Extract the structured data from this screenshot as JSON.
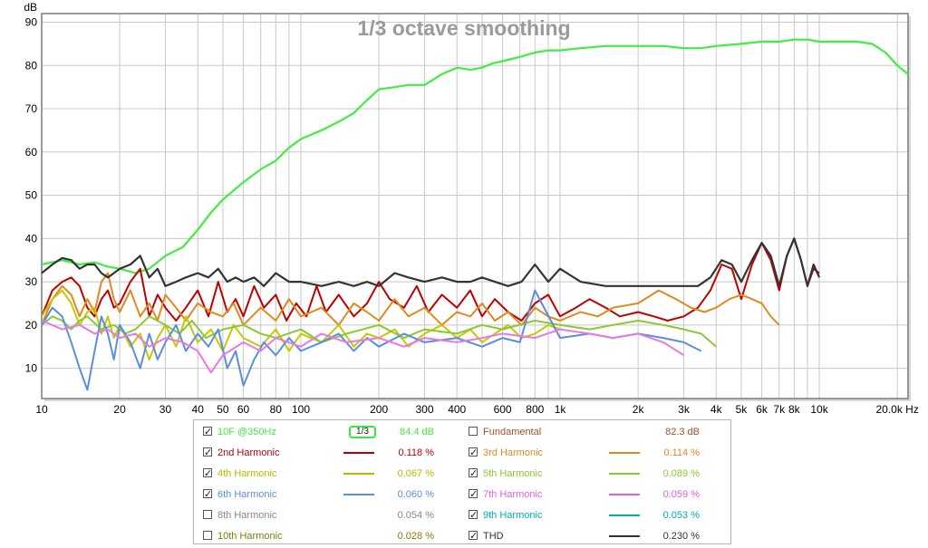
{
  "chart_data": {
    "type": "line",
    "title": "1/3 octave smoothing",
    "ylabel": "dB",
    "xunit": "Hz",
    "xscale": "log",
    "xlim": [
      10,
      22000
    ],
    "ylim": [
      3,
      92
    ],
    "grid": true,
    "x_ticks": [
      10,
      20,
      30,
      40,
      50,
      60,
      80,
      100,
      200,
      300,
      400,
      600,
      800,
      1000,
      2000,
      3000,
      4000,
      5000,
      6000,
      7000,
      8000,
      10000,
      20000
    ],
    "x_tick_labels": [
      "10",
      "20",
      "30",
      "40",
      "50",
      "60",
      "80",
      "100",
      "200",
      "300",
      "400",
      "600",
      "800",
      "1k",
      "2k",
      "3k",
      "4k",
      "5k",
      "6k",
      "7k",
      "8k",
      "10k",
      "20.0k Hz"
    ],
    "y_ticks": [
      10,
      20,
      30,
      40,
      50,
      60,
      70,
      80,
      90
    ],
    "series": [
      {
        "name": "10F @350Hz",
        "color": "#40ee40",
        "visible": true,
        "x": [
          10,
          12,
          14,
          16,
          18,
          20,
          23,
          26,
          30,
          35,
          40,
          45,
          50,
          60,
          70,
          80,
          90,
          100,
          120,
          140,
          160,
          180,
          200,
          230,
          260,
          300,
          350,
          400,
          450,
          500,
          550,
          600,
          700,
          800,
          900,
          1000,
          1200,
          1500,
          2000,
          2500,
          3000,
          3500,
          4000,
          5000,
          6000,
          7000,
          8000,
          9000,
          10000,
          12000,
          14000,
          16000,
          18000,
          20000,
          22000
        ],
        "y": [
          34,
          35,
          34,
          34.5,
          33.5,
          33,
          32,
          33,
          36,
          38,
          42,
          46,
          49,
          53,
          56,
          58,
          61,
          63,
          65,
          67,
          69,
          72,
          74.5,
          75,
          75.5,
          75.5,
          78,
          79.5,
          79,
          79.5,
          80.5,
          81,
          82,
          83,
          83.5,
          83.5,
          84,
          84.5,
          84.5,
          84.5,
          84,
          84,
          84.5,
          85,
          85.5,
          85.5,
          86,
          86,
          85.5,
          85.5,
          85.5,
          85,
          83,
          80,
          78
        ]
      },
      {
        "name": "Fundamental",
        "color": "#a0522d",
        "visible": false,
        "x": [],
        "y": []
      },
      {
        "name": "2nd Harmonic",
        "color": "#c00000",
        "visible": true,
        "x": [
          10,
          11,
          12,
          13,
          14,
          15,
          16,
          17,
          18,
          19,
          20,
          22,
          24,
          26,
          28,
          30,
          33,
          36,
          40,
          44,
          48,
          52,
          56,
          60,
          66,
          72,
          80,
          88,
          96,
          105,
          115,
          125,
          140,
          160,
          180,
          200,
          220,
          250,
          280,
          310,
          350,
          400,
          450,
          500,
          560,
          630,
          710,
          800,
          900,
          1000,
          1150,
          1300,
          1500,
          1700,
          2000,
          2300,
          2600,
          3000,
          3400,
          3800,
          4200,
          4600,
          5000,
          5500,
          6000,
          6500,
          7000,
          7500,
          8000,
          8500,
          9000,
          9500,
          10000
        ],
        "y": [
          22,
          28,
          30,
          31,
          29,
          24,
          22,
          26,
          28,
          24,
          25,
          30,
          33,
          22,
          27,
          24,
          21,
          24,
          28,
          22,
          30,
          23,
          26,
          22,
          29,
          24,
          27,
          21,
          25,
          22,
          29,
          23,
          27,
          22,
          25,
          30,
          26,
          24,
          29,
          23,
          27,
          24,
          28,
          22,
          26,
          23,
          21,
          25,
          27,
          22,
          24,
          26,
          24,
          22,
          23,
          22,
          21,
          22,
          24,
          28,
          34,
          33,
          26,
          34,
          39,
          35,
          28,
          36,
          40,
          35,
          29,
          33,
          32
        ]
      },
      {
        "name": "3rd Harmonic",
        "color": "#e08a1e",
        "visible": true,
        "x": [
          10,
          11,
          12,
          13,
          14,
          15,
          16,
          17,
          18,
          19,
          20,
          22,
          24,
          26,
          28,
          30,
          33,
          36,
          40,
          45,
          50,
          55,
          60,
          70,
          80,
          90,
          100,
          120,
          140,
          160,
          180,
          200,
          230,
          260,
          300,
          350,
          400,
          450,
          500,
          560,
          630,
          710,
          800,
          900,
          1000,
          1200,
          1400,
          1600,
          2000,
          2400,
          2800,
          3200,
          3600,
          4000,
          4500,
          5000,
          5500,
          6000,
          6500,
          7000
        ],
        "y": [
          20,
          26,
          29,
          27,
          22,
          26,
          23,
          30,
          32,
          26,
          23,
          28,
          22,
          25,
          21,
          27,
          24,
          21,
          25,
          23,
          22,
          25,
          20,
          24,
          21,
          26,
          22,
          24,
          20,
          25,
          23,
          21,
          26,
          22,
          24,
          20,
          23,
          22,
          25,
          21,
          23,
          20,
          24,
          22,
          21,
          23,
          22,
          24,
          25,
          28,
          26,
          24,
          23,
          24,
          26,
          27,
          26,
          25,
          22,
          20
        ]
      },
      {
        "name": "4th Harmonic",
        "color": "#c8c800",
        "visible": true,
        "x": [
          10,
          11,
          12,
          13,
          14,
          15,
          16,
          17,
          18,
          19,
          20,
          22,
          24,
          26,
          28,
          30,
          33,
          36,
          40,
          45,
          50,
          55,
          60,
          70,
          80,
          90,
          100,
          120,
          140,
          160,
          180,
          200,
          230,
          260,
          300,
          350,
          400,
          450,
          500,
          560,
          630,
          710,
          800,
          900,
          1000
        ],
        "y": [
          22,
          26,
          28,
          25,
          20,
          23,
          24,
          18,
          22,
          17,
          20,
          15,
          18,
          12,
          17,
          20,
          15,
          22,
          16,
          19,
          14,
          20,
          17,
          15,
          19,
          14,
          18,
          16,
          20,
          15,
          18,
          17,
          19,
          15,
          18,
          20,
          17,
          19,
          16,
          18,
          20,
          17,
          18,
          20,
          19
        ]
      },
      {
        "name": "5th Harmonic",
        "color": "#8bc832",
        "visible": true,
        "x": [
          10,
          11,
          12,
          13,
          14,
          15,
          17,
          19,
          21,
          23,
          26,
          30,
          34,
          38,
          43,
          50,
          60,
          70,
          80,
          100,
          120,
          150,
          200,
          250,
          300,
          400,
          500,
          600,
          800,
          1000,
          1300,
          1600,
          2000,
          2500,
          3000,
          3500,
          4000
        ],
        "y": [
          20,
          22,
          21,
          19,
          21,
          22,
          19,
          20,
          18,
          19,
          22,
          20,
          18,
          21,
          17,
          19,
          20,
          18,
          17,
          19,
          16,
          18,
          20,
          17,
          19,
          18,
          20,
          19,
          21,
          20,
          19,
          20,
          21,
          20,
          19,
          18,
          15
        ]
      },
      {
        "name": "6th Harmonic",
        "color": "#5a8ee0",
        "visible": true,
        "x": [
          10,
          11,
          12,
          13,
          14,
          15,
          16,
          17,
          18,
          19,
          20,
          22,
          24,
          26,
          28,
          30,
          33,
          36,
          40,
          44,
          48,
          52,
          56,
          60,
          66,
          72,
          80,
          90,
          100,
          120,
          140,
          160,
          180,
          200,
          250,
          300,
          400,
          500,
          600,
          700,
          800,
          1000,
          1300,
          1600,
          2000,
          2500,
          3000,
          3500
        ],
        "y": [
          20,
          24,
          22,
          16,
          10,
          5,
          14,
          22,
          18,
          12,
          20,
          16,
          10,
          18,
          12,
          16,
          20,
          14,
          18,
          15,
          19,
          10,
          14,
          6,
          12,
          16,
          13,
          17,
          14,
          16,
          18,
          14,
          17,
          15,
          18,
          16,
          17,
          15,
          17,
          16,
          28,
          17,
          18,
          17,
          18,
          17,
          16,
          14
        ]
      },
      {
        "name": "7th Harmonic",
        "color": "#e878e8",
        "visible": true,
        "x": [
          10,
          12,
          14,
          16,
          18,
          20,
          23,
          26,
          30,
          35,
          40,
          45,
          50,
          60,
          70,
          80,
          100,
          120,
          150,
          200,
          250,
          300,
          400,
          500,
          600,
          800,
          1000,
          1300,
          1600,
          2000,
          2500,
          3000
        ],
        "y": [
          21,
          19,
          20,
          18,
          19,
          17,
          18,
          15,
          17,
          16,
          14,
          9,
          13,
          16,
          14,
          17,
          15,
          18,
          16,
          17,
          15,
          17,
          16,
          17,
          18,
          17,
          19,
          18,
          17,
          18,
          16,
          13
        ]
      },
      {
        "name": "8th Harmonic",
        "color": "#888888",
        "visible": false,
        "x": [],
        "y": []
      },
      {
        "name": "9th Harmonic",
        "color": "#00b8b8",
        "visible": false,
        "x": [],
        "y": []
      },
      {
        "name": "10th Harmonic",
        "color": "#808000",
        "visible": false,
        "x": [],
        "y": []
      },
      {
        "name": "THD",
        "color": "#333333",
        "visible": true,
        "x": [
          10,
          11,
          12,
          13,
          14,
          15,
          16,
          17,
          18,
          19,
          20,
          22,
          24,
          26,
          28,
          30,
          33,
          36,
          40,
          44,
          48,
          52,
          56,
          60,
          66,
          72,
          80,
          90,
          100,
          120,
          140,
          160,
          180,
          200,
          230,
          260,
          300,
          350,
          400,
          450,
          500,
          560,
          630,
          710,
          800,
          900,
          1000,
          1200,
          1500,
          2000,
          2500,
          3000,
          3400,
          3800,
          4200,
          4600,
          5000,
          5500,
          6000,
          6500,
          7000,
          7500,
          8000,
          8500,
          9000,
          9500,
          10000
        ],
        "y": [
          32,
          34,
          35.5,
          35,
          33,
          34,
          34,
          32,
          31,
          32,
          33,
          34,
          36,
          31,
          33,
          29,
          30,
          31,
          32,
          31,
          33,
          30,
          31,
          30,
          31,
          29,
          32,
          30,
          30,
          29,
          30,
          29,
          30,
          29,
          32,
          31,
          30,
          31,
          30,
          30,
          31,
          30,
          29,
          30,
          34,
          30,
          33,
          30,
          29,
          29,
          29,
          29,
          29,
          31,
          35,
          34,
          30,
          35,
          39,
          36,
          29,
          36,
          40,
          35,
          29,
          34,
          31
        ]
      }
    ]
  },
  "legend": [
    {
      "name": "10F @350Hz",
      "checked": true,
      "color": "#40ee40",
      "value": "84.4 dB",
      "smoothing_label": "1/3"
    },
    {
      "name": "Fundamental",
      "checked": false,
      "color": "#a0522d",
      "value": "82.3 dB"
    },
    {
      "name": "2nd Harmonic",
      "checked": true,
      "color": "#c00000",
      "value": "0.118 %"
    },
    {
      "name": "3rd Harmonic",
      "checked": true,
      "color": "#e08a1e",
      "value": "0.114 %"
    },
    {
      "name": "4th Harmonic",
      "checked": true,
      "color": "#b8b800",
      "value": "0.067 %"
    },
    {
      "name": "5th Harmonic",
      "checked": true,
      "color": "#8bc832",
      "value": "0.089 %"
    },
    {
      "name": "6th Harmonic",
      "checked": true,
      "color": "#5a8ee0",
      "value": "0.060 %"
    },
    {
      "name": "7th Harmonic",
      "checked": true,
      "color": "#e060e0",
      "value": "0.059 %"
    },
    {
      "name": "8th Harmonic",
      "checked": false,
      "color": "#888888",
      "value": "0.054 %"
    },
    {
      "name": "9th Harmonic",
      "checked": true,
      "color": "#00b0b0",
      "value": "0.053 %"
    },
    {
      "name": "10th Harmonic",
      "checked": false,
      "color": "#808000",
      "value": "0.028 %"
    },
    {
      "name": "THD",
      "checked": true,
      "color": "#333333",
      "value": "0.230 %"
    }
  ]
}
